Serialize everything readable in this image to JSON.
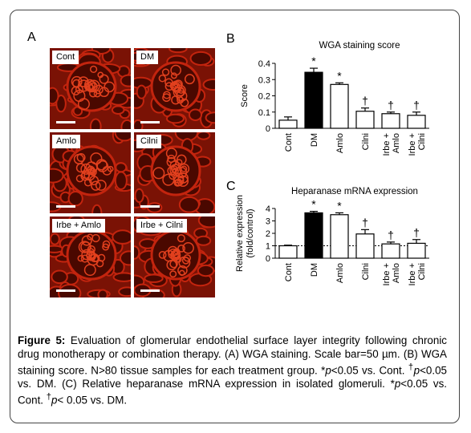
{
  "panels": {
    "a": {
      "letter": "A",
      "images": [
        {
          "label": "Cont"
        },
        {
          "label": "DM"
        },
        {
          "label": "Amlo"
        },
        {
          "label": "Cilni"
        },
        {
          "label": "Irbe + Amlo"
        },
        {
          "label": "Irbe + Cilni"
        }
      ]
    },
    "b": {
      "letter": "B"
    },
    "c": {
      "letter": "C"
    }
  },
  "chart_data": [
    {
      "type": "bar",
      "title": "WGA staining score",
      "ylabel": "Score",
      "ylim": [
        0,
        0.4
      ],
      "yticks": [
        "0",
        "0.1",
        "0.2",
        "0.3",
        "0.4"
      ],
      "categories": [
        "Cont",
        "DM",
        "Amlo",
        "Cilni",
        "Irbe + Amlo",
        "Irbe + Cilni"
      ],
      "values": [
        0.05,
        0.345,
        0.27,
        0.105,
        0.09,
        0.08
      ],
      "errors": [
        0.02,
        0.025,
        0.01,
        0.02,
        0.01,
        0.02
      ],
      "fills": [
        "#ffffff",
        "#000000",
        "#ffffff",
        "#ffffff",
        "#ffffff",
        "#ffffff"
      ],
      "annotations": [
        "",
        "*",
        "*",
        "†",
        "†",
        "†"
      ],
      "reference_line": null
    },
    {
      "type": "bar",
      "title": "Heparanase mRNA expression",
      "ylabel": "Relative expression (fold/control)",
      "ylabel_lines": [
        "Relative expression",
        "(fold/control)"
      ],
      "ylim": [
        0,
        4
      ],
      "yticks": [
        "0",
        "1",
        "2",
        "3",
        "4"
      ],
      "categories": [
        "Cont",
        "DM",
        "Amlo",
        "Cilni",
        "Irbe + Amlo",
        "Irbe + Cilni"
      ],
      "values": [
        1.0,
        3.65,
        3.5,
        1.95,
        1.15,
        1.2
      ],
      "errors": [
        0.05,
        0.12,
        0.15,
        0.35,
        0.15,
        0.3
      ],
      "fills": [
        "#ffffff",
        "#000000",
        "#ffffff",
        "#ffffff",
        "#ffffff",
        "#ffffff"
      ],
      "annotations": [
        "",
        "*",
        "*",
        "†",
        "†",
        "†"
      ],
      "reference_line": 1
    }
  ],
  "caption": {
    "lead": "Figure 5:",
    "s1": " Evaluation of glomerular endothelial surface layer integrity following chronic drug monotherapy or combination therapy. (A) WGA staining. Scale bar=50 µm. (B) WGA staining score. N>80 tissue samples for each treatment group. *",
    "p1": "p",
    "s2": "<0.05 vs. Cont. ",
    "d1": "†",
    "p2": "p",
    "s3": "<0.05 vs. DM. (C) Relative heparanase mRNA expression in isolated glomeruli. *",
    "p3": "p",
    "s4": "<0.05 vs. Cont. ",
    "d2": "†",
    "p4": "p",
    "s5": "< 0.05 vs. DM."
  },
  "colors": {
    "tissue": "#c3240e",
    "tissue_dark": "#4a0800",
    "tissue_bg": "#7a1205"
  }
}
